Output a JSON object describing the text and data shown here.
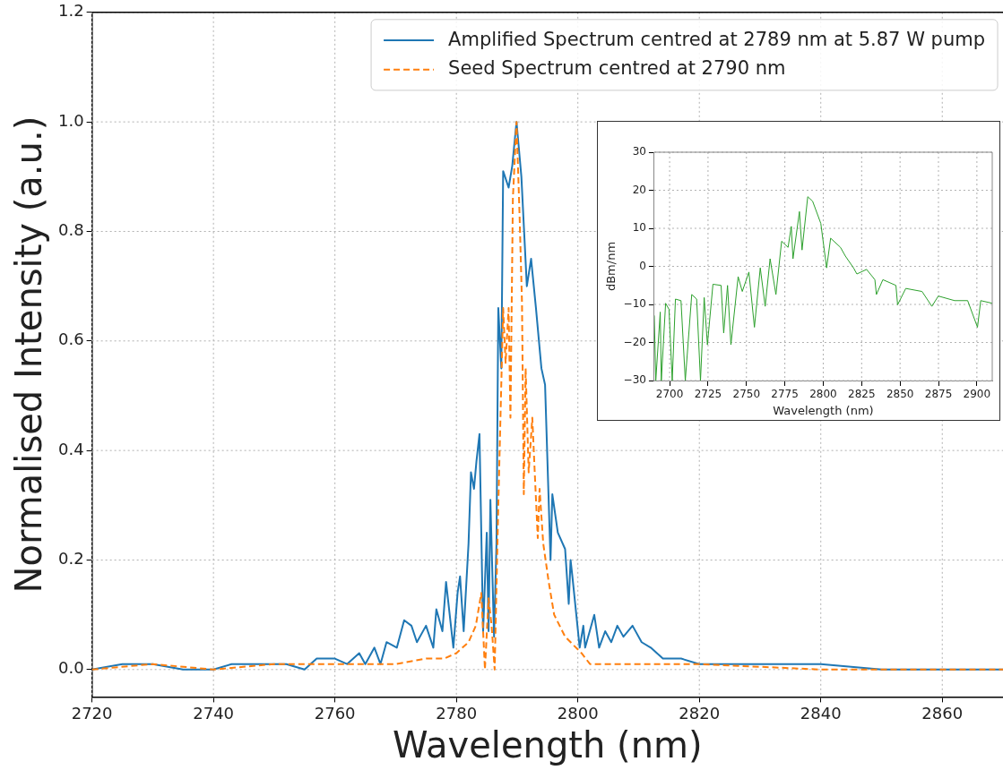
{
  "chart_data": [
    {
      "type": "line",
      "xlabel": "Wavelength (nm)",
      "ylabel": "Normalised Intensity (a.u.)",
      "xlim": [
        2720,
        2870
      ],
      "ylim": [
        -0.05,
        1.2
      ],
      "xticks": [
        2720,
        2740,
        2760,
        2780,
        2800,
        2820,
        2840,
        2860
      ],
      "yticks": [
        {
          "value": 0,
          "label": "0.0"
        },
        {
          "value": 0.2,
          "label": "0.2"
        },
        {
          "value": 0.4,
          "label": "0.4"
        },
        {
          "value": 0.6,
          "label": "0.6"
        },
        {
          "value": 0.8,
          "label": "0.8"
        },
        {
          "value": 1,
          "label": "1.0"
        },
        {
          "value": 1.2,
          "label": "1.2"
        }
      ],
      "grid": true,
      "legend": "top right",
      "series": [
        {
          "name": "Amplified Spectrum centred at 2789 nm at 5.87 W pump",
          "color": "#1f77b4",
          "line_style": "solid",
          "x": [
            2720,
            2725,
            2730,
            2735,
            2740,
            2743,
            2746,
            2749,
            2752,
            2755,
            2757,
            2760,
            2762,
            2764,
            2765,
            2766.5,
            2767.5,
            2768.5,
            2770.2,
            2771.4,
            2772.6,
            2773.5,
            2775,
            2776.2,
            2776.7,
            2777.7,
            2778.3,
            2779.5,
            2780.2,
            2780.6,
            2781.2,
            2782,
            2782.4,
            2782.9,
            2783.3,
            2783.8,
            2784.4,
            2785,
            2785.3,
            2785.6,
            2786.2,
            2786.6,
            2786.9,
            2787.4,
            2787.7,
            2788.6,
            2789.2,
            2789.9,
            2790.7,
            2791.6,
            2792.3,
            2793.1,
            2794,
            2794.6,
            2795.5,
            2795.8,
            2796.7,
            2797.9,
            2798.5,
            2798.8,
            2799.1,
            2800.3,
            2800.9,
            2801.2,
            2802.7,
            2803.5,
            2804.5,
            2805.5,
            2806.5,
            2807.5,
            2809,
            2810.5,
            2812,
            2814,
            2817,
            2820,
            2825,
            2830,
            2835,
            2840,
            2850,
            2860,
            2870
          ],
          "values": [
            0.0,
            0.01,
            0.01,
            0.0,
            0.0,
            0.01,
            0.01,
            0.01,
            0.01,
            0.0,
            0.02,
            0.02,
            0.01,
            0.03,
            0.01,
            0.04,
            0.01,
            0.05,
            0.04,
            0.09,
            0.08,
            0.05,
            0.08,
            0.04,
            0.11,
            0.07,
            0.16,
            0.04,
            0.14,
            0.17,
            0.07,
            0.23,
            0.36,
            0.33,
            0.38,
            0.43,
            0.07,
            0.25,
            0.07,
            0.31,
            0.06,
            0.23,
            0.66,
            0.55,
            0.91,
            0.88,
            0.92,
            1.0,
            0.9,
            0.7,
            0.75,
            0.66,
            0.55,
            0.52,
            0.2,
            0.32,
            0.25,
            0.22,
            0.12,
            0.2,
            0.17,
            0.04,
            0.08,
            0.04,
            0.1,
            0.04,
            0.07,
            0.05,
            0.08,
            0.06,
            0.08,
            0.05,
            0.04,
            0.02,
            0.02,
            0.01,
            0.01,
            0.01,
            0.01,
            0.01,
            0.0,
            0.0,
            0.0
          ]
        },
        {
          "name": "Seed Spectrum centred at 2790 nm",
          "color": "#ff7f0e",
          "line_style": "dashed",
          "x": [
            2720,
            2730,
            2740,
            2750,
            2760,
            2770,
            2775,
            2778,
            2780,
            2782,
            2783.2,
            2784.1,
            2784.7,
            2785.3,
            2785.8,
            2786.3,
            2786.9,
            2787.7,
            2788.1,
            2788.6,
            2788.9,
            2789.3,
            2789.9,
            2790.4,
            2790.8,
            2791.1,
            2791.4,
            2791.9,
            2792.5,
            2792.9,
            2793.4,
            2793.7,
            2794.3,
            2795.2,
            2796.1,
            2797.9,
            2799.7,
            2800.6,
            2802,
            2805,
            2820,
            2840,
            2870
          ],
          "values": [
            0.0,
            0.01,
            0.0,
            0.01,
            0.01,
            0.01,
            0.02,
            0.02,
            0.03,
            0.05,
            0.08,
            0.14,
            0.0,
            0.13,
            0.08,
            0.0,
            0.3,
            0.66,
            0.56,
            0.66,
            0.46,
            0.86,
            1.0,
            0.83,
            0.67,
            0.32,
            0.55,
            0.36,
            0.46,
            0.36,
            0.24,
            0.33,
            0.23,
            0.16,
            0.1,
            0.06,
            0.04,
            0.03,
            0.01,
            0.01,
            0.01,
            0.0,
            0.0
          ]
        }
      ]
    },
    {
      "type": "line",
      "xlabel": "Wavelength (nm)",
      "ylabel": "dBm/nm",
      "xlim": [
        2690,
        2910
      ],
      "ylim": [
        -30,
        30
      ],
      "xticks": [
        2700,
        2725,
        2750,
        2775,
        2800,
        2825,
        2850,
        2875,
        2900
      ],
      "yticks": [
        {
          "value": -30,
          "label": "−30"
        },
        {
          "value": -20,
          "label": "−20"
        },
        {
          "value": -10,
          "label": "−10"
        },
        0,
        10,
        20,
        30
      ],
      "grid": true,
      "series": [
        {
          "color": "#2ca02c",
          "line_style": "solid",
          "x": [
            2690,
            2691,
            2693.9,
            2694.6,
            2697.4,
            2699.6,
            2701.7,
            2703.8,
            2707.4,
            2710.2,
            2714.4,
            2717.6,
            2720.1,
            2722.5,
            2724.6,
            2728.2,
            2733.5,
            2735.2,
            2737.7,
            2739.9,
            2744.6,
            2747.3,
            2751.6,
            2755.2,
            2759,
            2762.2,
            2765.4,
            2769.2,
            2772.9,
            2777.1,
            2779.2,
            2780.3,
            2784.5,
            2786.2,
            2789.9,
            2793.1,
            2798.4,
            2802.2,
            2804.8,
            2811.2,
            2814.4,
            2819.7,
            2821.9,
            2828.2,
            2833.6,
            2834.6,
            2838.8,
            2847.3,
            2848.4,
            2853.7,
            2864.3,
            2870.7,
            2874.9,
            2885.5,
            2894,
            2900.4,
            2902.5,
            2910
          ],
          "values": [
            -12.9,
            -30,
            -12,
            -30,
            -9.7,
            -11.3,
            -30,
            -8.6,
            -9,
            -30,
            -7.4,
            -8.6,
            -30,
            -8.2,
            -20.6,
            -4.7,
            -5,
            -17.5,
            -5,
            -20.6,
            -2.7,
            -6.6,
            -1.5,
            -16,
            -0.4,
            -10.5,
            2,
            -7.4,
            6.6,
            5,
            10.5,
            2,
            14.4,
            4.3,
            18.3,
            17.1,
            11.3,
            -0.4,
            7.4,
            5,
            2.7,
            -0.4,
            -2,
            -0.8,
            -3.5,
            -7.4,
            -3.5,
            -5,
            -10.1,
            -5.8,
            -6.6,
            -10.5,
            -7.8,
            -9,
            -9,
            -16,
            -9,
            -9.7
          ]
        }
      ]
    }
  ]
}
